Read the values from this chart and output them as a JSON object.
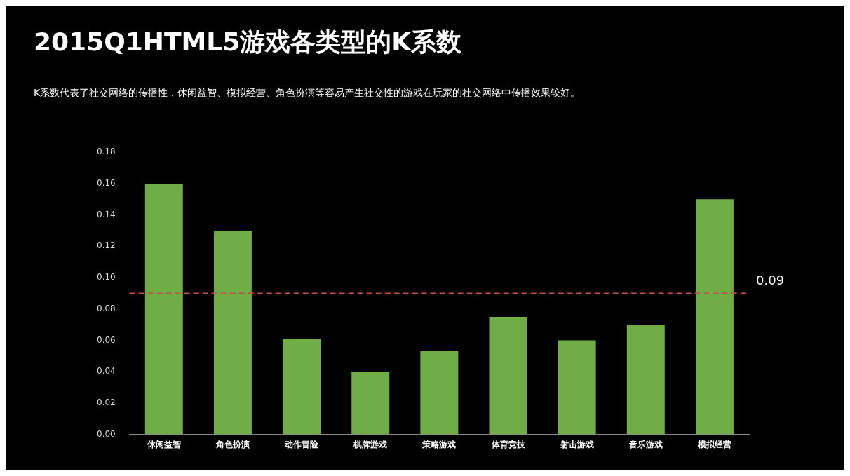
{
  "chart_data": {
    "type": "bar",
    "title": "2015Q1HTML5游戏各类型的K系数",
    "subtitle": "K系数代表了社交网络的传播性，休闲益智、模拟经营、角色扮演等容易产生社交性的游戏在玩家的社交网络中传播效果较好。",
    "categories": [
      "休闲益智",
      "角色扮演",
      "动作冒险",
      "棋牌游戏",
      "策略游戏",
      "体育竞技",
      "射击游戏",
      "音乐游戏",
      "模拟经营"
    ],
    "values": [
      0.16,
      0.13,
      0.061,
      0.04,
      0.053,
      0.075,
      0.06,
      0.07,
      0.15
    ],
    "color": "#70ad47",
    "ylim": [
      0,
      0.18
    ],
    "yticks": [
      {
        "value": 0,
        "label": "0.00"
      },
      0.02,
      0.04,
      0.06,
      0.08,
      {
        "value": 0.1,
        "label": "0.10"
      },
      0.12,
      0.14,
      0.16,
      0.18
    ],
    "ref_lines": [
      {
        "axis": "y",
        "value": 0.09,
        "label": "0.09",
        "color": "#c0504d",
        "line_style": "dashed"
      }
    ],
    "grid": false,
    "legend": false
  }
}
